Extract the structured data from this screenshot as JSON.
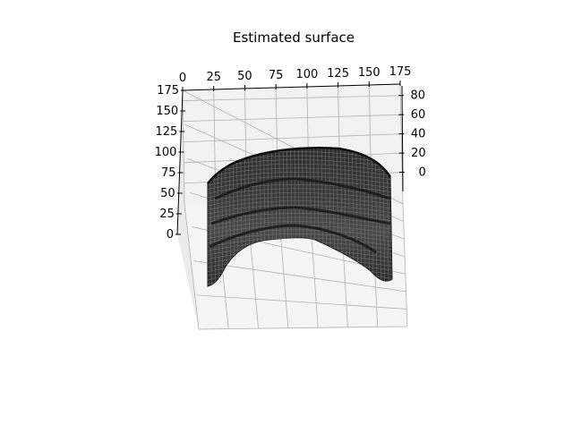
{
  "chart_data": {
    "type": "surface3d",
    "title": "Estimated surface",
    "xlabel": "",
    "ylabel": "",
    "zlabel": "",
    "x_ticks": [
      "0",
      "25",
      "50",
      "75",
      "100",
      "125",
      "150",
      "175"
    ],
    "y_ticks": [
      "0",
      "25",
      "50",
      "75",
      "100",
      "125",
      "150",
      "175"
    ],
    "z_ticks": [
      "0",
      "20",
      "40",
      "60",
      "80"
    ],
    "xlim": [
      0,
      175
    ],
    "ylim": [
      0,
      175
    ],
    "zlim": [
      0,
      80
    ],
    "grid": true,
    "colors": {
      "pane": "#f2f2f2",
      "grid": "#b0b0b0",
      "surface_dark": "#1a1a1a",
      "surface_light": "#6a6a6a"
    }
  }
}
